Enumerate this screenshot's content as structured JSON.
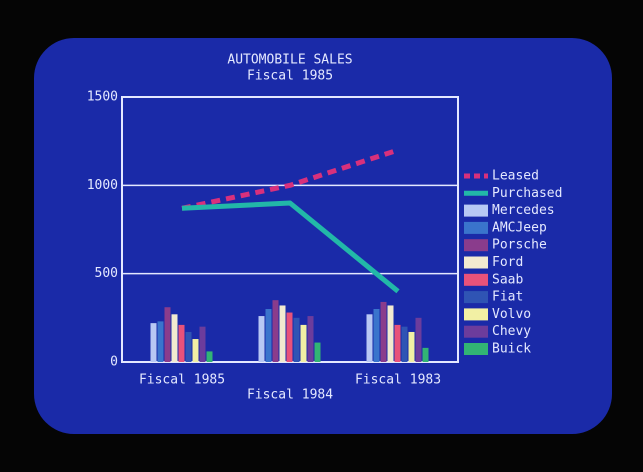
{
  "chart_data": {
    "type": "bar",
    "title": "AUTOMOBILE SALES",
    "subtitle": "Fiscal 1985",
    "categories": [
      "Fiscal 1985",
      "Fiscal 1984",
      "Fiscal 1983"
    ],
    "ylim": [
      0,
      1500
    ],
    "yticks": [
      0,
      500,
      1000,
      1500
    ],
    "grid": true,
    "legend": "right",
    "series": [
      {
        "name": "Leased",
        "type": "line",
        "dashed": true,
        "color": "#d8307c",
        "values": [
          870,
          1000,
          1200
        ]
      },
      {
        "name": "Purchased",
        "type": "line",
        "dashed": false,
        "color": "#22b8a8",
        "values": [
          870,
          900,
          400
        ]
      },
      {
        "name": "Mercedes",
        "type": "bar",
        "color": "#b8c8f4",
        "values": [
          220,
          260,
          270
        ]
      },
      {
        "name": "AMCJeep",
        "type": "bar",
        "color": "#3a74cc",
        "values": [
          230,
          300,
          300
        ]
      },
      {
        "name": "Porsche",
        "type": "bar",
        "color": "#8a3c8c",
        "values": [
          310,
          350,
          340
        ]
      },
      {
        "name": "Ford",
        "type": "bar",
        "color": "#f2ead0",
        "values": [
          270,
          320,
          320
        ]
      },
      {
        "name": "Saab",
        "type": "bar",
        "color": "#e8527a",
        "values": [
          210,
          280,
          210
        ]
      },
      {
        "name": "Fiat",
        "type": "bar",
        "color": "#2f54b4",
        "values": [
          170,
          250,
          200
        ]
      },
      {
        "name": "Volvo",
        "type": "bar",
        "color": "#f2f0a4",
        "values": [
          130,
          210,
          170
        ]
      },
      {
        "name": "Chevy",
        "type": "bar",
        "color": "#6c3c9c",
        "values": [
          200,
          260,
          250
        ]
      },
      {
        "name": "Buick",
        "type": "bar",
        "color": "#32b474",
        "values": [
          60,
          110,
          80
        ]
      }
    ]
  }
}
